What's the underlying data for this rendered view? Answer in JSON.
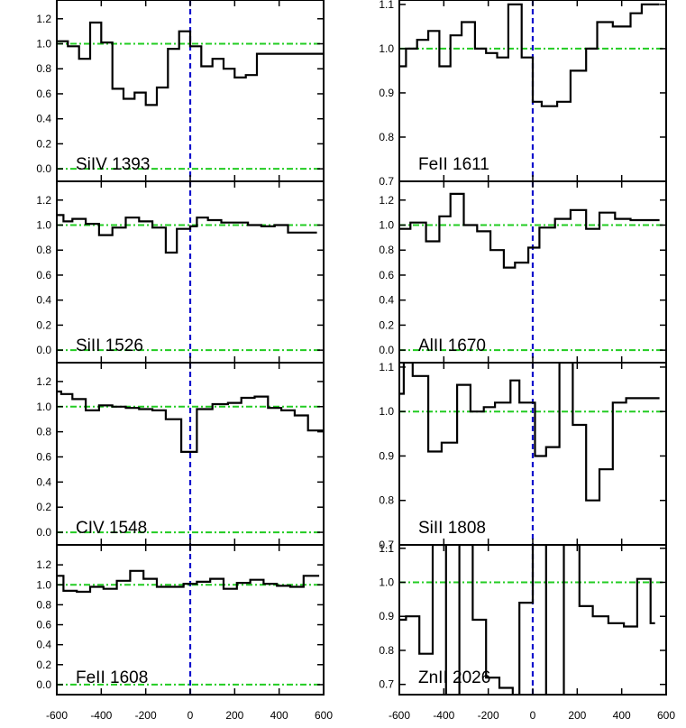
{
  "chart_data": [
    {
      "type": "line",
      "title": "SiIV 1393",
      "xlim": [
        -600,
        600
      ],
      "ylim": [
        -0.1,
        1.35
      ],
      "yticks": [
        0.0,
        0.2,
        0.4,
        0.6,
        0.8,
        1.0,
        1.2
      ],
      "ytick_labels": [
        "0.0",
        "0.2",
        "0.4",
        "0.6",
        "0.8",
        "1.0",
        "1.2"
      ],
      "reference_lines": {
        "continuum": 1.0,
        "zero": 0.0,
        "velocity_zero": 0
      },
      "series": [
        {
          "style": "histogram",
          "x": [
            -600,
            -550,
            -500,
            -450,
            -400,
            -350,
            -300,
            -250,
            -200,
            -150,
            -100,
            -50,
            0,
            50,
            100,
            150,
            200,
            250,
            300,
            350,
            400,
            450,
            500,
            550,
            580
          ],
          "y": [
            1.02,
            0.98,
            0.88,
            1.17,
            1.01,
            0.64,
            0.56,
            0.61,
            0.51,
            0.65,
            0.96,
            1.1,
            0.98,
            0.82,
            0.88,
            0.8,
            0.73,
            0.75,
            0.92,
            0.92,
            0.92,
            0.92,
            0.92,
            0.92,
            0.92
          ]
        }
      ]
    },
    {
      "type": "line",
      "title": "FeII 1611",
      "xlim": [
        -600,
        600
      ],
      "ylim": [
        0.7,
        1.11
      ],
      "yticks": [
        0.7,
        0.8,
        0.9,
        1.0,
        1.1
      ],
      "ytick_labels": [
        "0.7",
        "0.8",
        "0.9",
        "1.0",
        "1.1"
      ],
      "reference_lines": {
        "continuum": 1.0,
        "zero": null,
        "velocity_zero": 0
      },
      "series": [
        {
          "style": "histogram",
          "x": [
            -600,
            -570,
            -520,
            -470,
            -420,
            -370,
            -320,
            -260,
            -210,
            -160,
            -110,
            -50,
            0,
            40,
            110,
            170,
            240,
            290,
            360,
            440,
            490,
            550
          ],
          "y": [
            0.96,
            1.0,
            1.02,
            1.04,
            0.96,
            1.03,
            1.06,
            1.0,
            0.99,
            0.98,
            1.1,
            0.98,
            0.88,
            0.87,
            0.88,
            0.95,
            1.0,
            1.06,
            1.05,
            1.08,
            1.1,
            1.1
          ]
        }
      ]
    },
    {
      "type": "line",
      "title": "SiII 1526",
      "xlim": [
        -600,
        600
      ],
      "ylim": [
        -0.1,
        1.35
      ],
      "yticks": [
        0.0,
        0.2,
        0.4,
        0.6,
        0.8,
        1.0,
        1.2
      ],
      "ytick_labels": [
        "0.0",
        "0.2",
        "0.4",
        "0.6",
        "0.8",
        "1.0",
        "1.2"
      ],
      "reference_lines": {
        "continuum": 1.0,
        "zero": 0.0,
        "velocity_zero": 0
      },
      "series": [
        {
          "style": "histogram",
          "x": [
            -600,
            -570,
            -530,
            -470,
            -410,
            -350,
            -290,
            -230,
            -170,
            -110,
            -60,
            0,
            30,
            80,
            140,
            200,
            260,
            320,
            380,
            440,
            500,
            550
          ],
          "y": [
            1.08,
            1.03,
            1.05,
            1.01,
            0.92,
            0.98,
            1.06,
            1.03,
            0.98,
            0.78,
            0.97,
            0.99,
            1.06,
            1.04,
            1.02,
            1.02,
            1.0,
            0.99,
            1.0,
            0.94,
            0.94,
            0.94
          ]
        }
      ]
    },
    {
      "type": "line",
      "title": "AlII 1670",
      "xlim": [
        -600,
        600
      ],
      "ylim": [
        -0.1,
        1.35
      ],
      "yticks": [
        0.0,
        0.2,
        0.4,
        0.6,
        0.8,
        1.0,
        1.2
      ],
      "ytick_labels": [
        "0.0",
        "0.2",
        "0.4",
        "0.6",
        "0.8",
        "1.0",
        "1.2"
      ],
      "reference_lines": {
        "continuum": 1.0,
        "zero": 0.0,
        "velocity_zero": 0
      },
      "series": [
        {
          "style": "histogram",
          "x": [
            -600,
            -550,
            -480,
            -420,
            -370,
            -310,
            -250,
            -190,
            -130,
            -80,
            -20,
            30,
            100,
            170,
            240,
            300,
            370,
            440,
            500,
            550
          ],
          "y": [
            0.97,
            1.02,
            0.87,
            1.07,
            1.25,
            1.0,
            0.95,
            0.8,
            0.66,
            0.7,
            0.82,
            0.98,
            1.05,
            1.12,
            0.97,
            1.1,
            1.05,
            1.04,
            1.04,
            1.04
          ]
        }
      ]
    },
    {
      "type": "line",
      "title": "CIV 1548",
      "xlim": [
        -600,
        600
      ],
      "ylim": [
        -0.1,
        1.35
      ],
      "yticks": [
        0.0,
        0.2,
        0.4,
        0.6,
        0.8,
        1.0,
        1.2
      ],
      "ytick_labels": [
        "0.0",
        "0.2",
        "0.4",
        "0.6",
        "0.8",
        "1.0",
        "1.2"
      ],
      "reference_lines": {
        "continuum": 1.0,
        "zero": 0.0,
        "velocity_zero": 0
      },
      "series": [
        {
          "style": "histogram",
          "x": [
            -600,
            -580,
            -530,
            -470,
            -410,
            -350,
            -290,
            -230,
            -170,
            -110,
            -40,
            30,
            100,
            170,
            230,
            290,
            350,
            410,
            470,
            530,
            580
          ],
          "y": [
            1.12,
            1.1,
            1.06,
            0.97,
            1.01,
            1.0,
            0.99,
            0.98,
            0.97,
            0.9,
            0.64,
            0.98,
            1.02,
            1.03,
            1.07,
            1.08,
            0.99,
            0.97,
            0.93,
            0.81,
            0.81
          ]
        }
      ]
    },
    {
      "type": "line",
      "title": "SiII 1808",
      "xlim": [
        -600,
        600
      ],
      "ylim": [
        0.7,
        1.11
      ],
      "yticks": [
        0.7,
        0.8,
        0.9,
        1.0,
        1.1
      ],
      "ytick_labels": [
        "0.7",
        "0.8",
        "0.9",
        "1.0",
        "1.1"
      ],
      "reference_lines": {
        "continuum": 1.0,
        "zero": null,
        "velocity_zero": 0
      },
      "series": [
        {
          "style": "histogram",
          "x": [
            -600,
            -580,
            -540,
            -470,
            -410,
            -340,
            -280,
            -220,
            -170,
            -100,
            -60,
            10,
            60,
            120,
            180,
            240,
            300,
            360,
            420,
            480,
            550
          ],
          "y": [
            1.04,
            1.11,
            1.08,
            0.91,
            0.93,
            1.06,
            1.0,
            1.01,
            1.02,
            1.07,
            1.02,
            0.9,
            0.92,
            1.11,
            0.97,
            0.8,
            0.87,
            1.02,
            1.03,
            1.03,
            1.03
          ]
        }
      ]
    },
    {
      "type": "line",
      "title": "FeII 1608",
      "xlim": [
        -600,
        600
      ],
      "ylim": [
        -0.1,
        1.35
      ],
      "yticks": [
        0.0,
        0.2,
        0.4,
        0.6,
        0.8,
        1.0,
        1.2
      ],
      "ytick_labels": [
        "0.0",
        "0.2",
        "0.4",
        "0.6",
        "0.8",
        "1.0",
        "1.2"
      ],
      "reference_lines": {
        "continuum": 1.0,
        "zero": 0.0,
        "velocity_zero": 0
      },
      "series": [
        {
          "style": "histogram",
          "x": [
            -600,
            -570,
            -510,
            -450,
            -390,
            -330,
            -270,
            -210,
            -150,
            -90,
            -30,
            30,
            90,
            150,
            210,
            270,
            330,
            390,
            450,
            510,
            560
          ],
          "y": [
            1.09,
            0.94,
            0.93,
            0.98,
            0.96,
            1.04,
            1.14,
            1.06,
            0.98,
            0.98,
            1.01,
            1.03,
            1.06,
            0.96,
            1.02,
            1.05,
            1.01,
            0.99,
            0.98,
            1.09,
            1.09
          ]
        }
      ]
    },
    {
      "type": "line",
      "title": "ZnII 2026",
      "xlim": [
        -600,
        600
      ],
      "ylim": [
        0.7,
        1.11
      ],
      "yticks": [
        0.7,
        0.8,
        0.9,
        1.0,
        1.1
      ],
      "ytick_labels": [
        "0.7",
        "0.8",
        "0.9",
        "1.0",
        "1.1"
      ],
      "reference_lines": {
        "continuum": 1.0,
        "zero": null,
        "velocity_zero": 0
      },
      "series": [
        {
          "style": "histogram",
          "x": [
            -600,
            -570,
            -510,
            -450,
            -390,
            -330,
            -270,
            -210,
            -150,
            -90,
            -60,
            0,
            60,
            140,
            210,
            270,
            340,
            410,
            470,
            530
          ],
          "y": [
            0.89,
            0.9,
            0.79,
            1.11,
            0.66,
            1.11,
            0.89,
            0.72,
            0.69,
            0.66,
            0.94,
            1.11,
            0.66,
            1.11,
            0.93,
            0.9,
            0.88,
            0.87,
            1.01,
            0.88
          ]
        }
      ]
    }
  ],
  "x_axis": {
    "tick_values": [
      -600,
      -400,
      -200,
      0,
      200,
      400,
      600
    ],
    "tick_labels": [
      "-600",
      "-400",
      "-200",
      "0",
      "200",
      "400",
      "600"
    ]
  },
  "colors": {
    "data": "#000000",
    "continuum": "#22cc22",
    "velocity_zero": "#1010cc",
    "axes": "#000000",
    "background": "#ffffff"
  }
}
